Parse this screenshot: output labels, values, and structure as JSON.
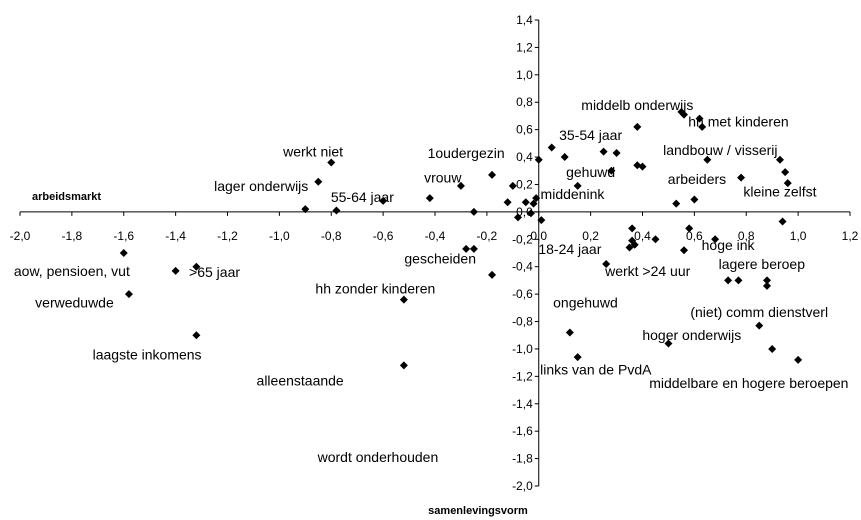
{
  "chart_data": {
    "type": "scatter",
    "xlabel": "arbeidsmarkt",
    "ylabel": "samenlevingsvorm",
    "xlim": [
      -2.0,
      1.2
    ],
    "ylim": [
      -2.0,
      1.4
    ],
    "x_ticks": [
      "-2,0",
      "-1,8",
      "-1,6",
      "-1,4",
      "-1,2",
      "-1,0",
      "-0,8",
      "-0,6",
      "-0,4",
      "-0,2",
      "0,0",
      "0,2",
      "0,4",
      "0,6",
      "0,8",
      "1,0",
      "1,2"
    ],
    "y_ticks": [
      "1,4",
      "1,2",
      "1,0",
      "0,8",
      "0,6",
      "0,4",
      "0,2",
      "0,0",
      "-0,2",
      "-0,4",
      "-0,6",
      "-0,8",
      "-1,0",
      "-1,2",
      "-1,4",
      "-1,6",
      "-1,8",
      "-2,0"
    ],
    "labels": [
      {
        "text": "middelb onderwijs",
        "x": 0.38,
        "y": 0.78
      },
      {
        "text": "hh met kinderen",
        "x": 0.77,
        "y": 0.66
      },
      {
        "text": "35-54 jaar",
        "x": 0.2,
        "y": 0.56
      },
      {
        "text": "landbouw / visserij",
        "x": 0.7,
        "y": 0.45
      },
      {
        "text": "werkt niet",
        "x": -0.87,
        "y": 0.44
      },
      {
        "text": "1oudergezin",
        "x": -0.28,
        "y": 0.43
      },
      {
        "text": "gehuwd",
        "x": 0.2,
        "y": 0.29
      },
      {
        "text": "vrouw",
        "x": -0.37,
        "y": 0.25
      },
      {
        "text": "arbeiders",
        "x": 0.61,
        "y": 0.24
      },
      {
        "text": "lager onderwijs",
        "x": -1.07,
        "y": 0.19
      },
      {
        "text": "kleine zelfst",
        "x": 0.93,
        "y": 0.15
      },
      {
        "text": "middenink",
        "x": 0.13,
        "y": 0.13
      },
      {
        "text": "55-64 jaar",
        "x": -0.68,
        "y": 0.11
      },
      {
        "text": "18-24 jaar",
        "x": 0.12,
        "y": -0.27
      },
      {
        "text": "hoge ink",
        "x": 0.73,
        "y": -0.24
      },
      {
        "text": "gescheiden",
        "x": -0.38,
        "y": -0.34
      },
      {
        "text": "aow, pensioen, vut",
        "x": -1.8,
        "y": -0.43
      },
      {
        "text": "werkt >24 uur",
        "x": 0.42,
        "y": -0.43
      },
      {
        "text": "lagere beroep",
        "x": 0.86,
        "y": -0.38
      },
      {
        "text": ">65 jaar",
        "x": -1.25,
        "y": -0.44
      },
      {
        "text": "hh zonder kinderen",
        "x": -0.63,
        "y": -0.56
      },
      {
        "text": "verweduwde",
        "x": -1.79,
        "y": -0.66
      },
      {
        "text": "ongehuwd",
        "x": 0.18,
        "y": -0.66
      },
      {
        "text": "(niet) comm dienstverl",
        "x": 0.85,
        "y": -0.73
      },
      {
        "text": "hoger onderwijs",
        "x": 0.59,
        "y": -0.9
      },
      {
        "text": "laagste inkomens",
        "x": -1.51,
        "y": -1.04
      },
      {
        "text": "links van de PvdA",
        "x": 0.22,
        "y": -1.15
      },
      {
        "text": "alleenstaande",
        "x": -0.92,
        "y": -1.23
      },
      {
        "text": "middelbare en hogere beroepen",
        "x": 0.81,
        "y": -1.25
      },
      {
        "text": "wordt onderhouden",
        "x": -0.62,
        "y": -1.79
      }
    ],
    "points": [
      {
        "x": -1.6,
        "y": -0.3
      },
      {
        "x": -1.58,
        "y": -0.6
      },
      {
        "x": -1.4,
        "y": -0.43
      },
      {
        "x": -1.32,
        "y": -0.4
      },
      {
        "x": -1.32,
        "y": -0.9
      },
      {
        "x": -0.9,
        "y": 0.02
      },
      {
        "x": -0.85,
        "y": 0.22
      },
      {
        "x": -0.8,
        "y": 0.36
      },
      {
        "x": -0.78,
        "y": 0.01
      },
      {
        "x": -0.6,
        "y": 0.08
      },
      {
        "x": -0.52,
        "y": -0.64
      },
      {
        "x": -0.52,
        "y": -1.12
      },
      {
        "x": -0.42,
        "y": 0.1
      },
      {
        "x": -0.3,
        "y": 0.19
      },
      {
        "x": -0.28,
        "y": -0.27
      },
      {
        "x": -0.25,
        "y": -0.27
      },
      {
        "x": -0.25,
        "y": 0.0
      },
      {
        "x": -0.18,
        "y": 0.27
      },
      {
        "x": -0.18,
        "y": -0.46
      },
      {
        "x": -0.12,
        "y": 0.07
      },
      {
        "x": -0.1,
        "y": 0.19
      },
      {
        "x": -0.08,
        "y": -0.04
      },
      {
        "x": -0.05,
        "y": 0.07
      },
      {
        "x": -0.03,
        "y": -0.01
      },
      {
        "x": -0.02,
        "y": 0.06
      },
      {
        "x": -0.01,
        "y": 0.1
      },
      {
        "x": 0.0,
        "y": 0.38
      },
      {
        "x": 0.01,
        "y": -0.06
      },
      {
        "x": 0.05,
        "y": 0.47
      },
      {
        "x": 0.1,
        "y": 0.4
      },
      {
        "x": 0.12,
        "y": -0.88
      },
      {
        "x": 0.15,
        "y": 0.19
      },
      {
        "x": 0.15,
        "y": -1.06
      },
      {
        "x": 0.25,
        "y": 0.44
      },
      {
        "x": 0.26,
        "y": -0.38
      },
      {
        "x": 0.28,
        "y": 0.3
      },
      {
        "x": 0.3,
        "y": 0.43
      },
      {
        "x": 0.35,
        "y": -0.26
      },
      {
        "x": 0.36,
        "y": -0.21
      },
      {
        "x": 0.36,
        "y": -0.12
      },
      {
        "x": 0.37,
        "y": -0.24
      },
      {
        "x": 0.38,
        "y": 0.62
      },
      {
        "x": 0.38,
        "y": 0.34
      },
      {
        "x": 0.4,
        "y": 0.33
      },
      {
        "x": 0.45,
        "y": -0.2
      },
      {
        "x": 0.5,
        "y": -0.96
      },
      {
        "x": 0.53,
        "y": 0.06
      },
      {
        "x": 0.55,
        "y": 0.73
      },
      {
        "x": 0.56,
        "y": 0.71
      },
      {
        "x": 0.56,
        "y": -0.28
      },
      {
        "x": 0.58,
        "y": -0.12
      },
      {
        "x": 0.6,
        "y": 0.09
      },
      {
        "x": 0.62,
        "y": 0.68
      },
      {
        "x": 0.63,
        "y": 0.62
      },
      {
        "x": 0.65,
        "y": 0.38
      },
      {
        "x": 0.68,
        "y": -0.2
      },
      {
        "x": 0.73,
        "y": -0.5
      },
      {
        "x": 0.77,
        "y": -0.5
      },
      {
        "x": 0.78,
        "y": 0.25
      },
      {
        "x": 0.85,
        "y": -0.83
      },
      {
        "x": 0.88,
        "y": -0.54
      },
      {
        "x": 0.88,
        "y": -0.5
      },
      {
        "x": 0.9,
        "y": -1.0
      },
      {
        "x": 0.93,
        "y": 0.38
      },
      {
        "x": 0.94,
        "y": -0.07
      },
      {
        "x": 0.95,
        "y": 0.29
      },
      {
        "x": 0.96,
        "y": 0.21
      },
      {
        "x": 1.0,
        "y": -1.08
      }
    ]
  }
}
